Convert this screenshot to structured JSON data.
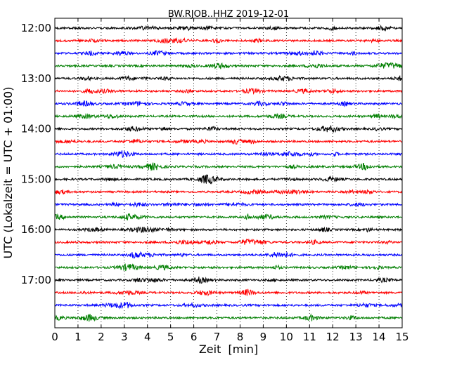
{
  "chart_data": {
    "type": "line",
    "title": "BW.RJOB..HHZ 2019-12-01",
    "xlabel": "Zeit  [min]",
    "ylabel": "UTC (Lokalzeit = UTC + 01:00)",
    "xlim": [
      0,
      15
    ],
    "x_ticks": [
      "0",
      "1",
      "2",
      "3",
      "4",
      "5",
      "6",
      "7",
      "8",
      "9",
      "10",
      "11",
      "12",
      "13",
      "14",
      "15"
    ],
    "y_ticks": [
      "12:00",
      "13:00",
      "14:00",
      "15:00",
      "16:00",
      "17:00"
    ],
    "grid": "vertical dotted at each minute",
    "trace_interval_min": 15,
    "colors": [
      "#000000",
      "#ff0000",
      "#0000ff",
      "#007f00"
    ],
    "series": [
      {
        "start": "12:00",
        "color": "#000000"
      },
      {
        "start": "12:15",
        "color": "#ff0000"
      },
      {
        "start": "12:30",
        "color": "#0000ff"
      },
      {
        "start": "12:45",
        "color": "#007f00"
      },
      {
        "start": "13:00",
        "color": "#000000"
      },
      {
        "start": "13:15",
        "color": "#ff0000"
      },
      {
        "start": "13:30",
        "color": "#0000ff"
      },
      {
        "start": "13:45",
        "color": "#007f00"
      },
      {
        "start": "14:00",
        "color": "#000000"
      },
      {
        "start": "14:15",
        "color": "#ff0000"
      },
      {
        "start": "14:30",
        "color": "#0000ff"
      },
      {
        "start": "14:45",
        "color": "#007f00"
      },
      {
        "start": "15:00",
        "color": "#000000"
      },
      {
        "start": "15:15",
        "color": "#ff0000"
      },
      {
        "start": "15:30",
        "color": "#0000ff"
      },
      {
        "start": "15:45",
        "color": "#007f00"
      },
      {
        "start": "16:00",
        "color": "#000000"
      },
      {
        "start": "16:15",
        "color": "#ff0000"
      },
      {
        "start": "16:30",
        "color": "#0000ff"
      },
      {
        "start": "16:45",
        "color": "#007f00"
      },
      {
        "start": "17:00",
        "color": "#000000"
      },
      {
        "start": "17:15",
        "color": "#ff0000"
      },
      {
        "start": "17:30",
        "color": "#0000ff"
      },
      {
        "start": "17:45",
        "color": "#007f00"
      }
    ]
  }
}
